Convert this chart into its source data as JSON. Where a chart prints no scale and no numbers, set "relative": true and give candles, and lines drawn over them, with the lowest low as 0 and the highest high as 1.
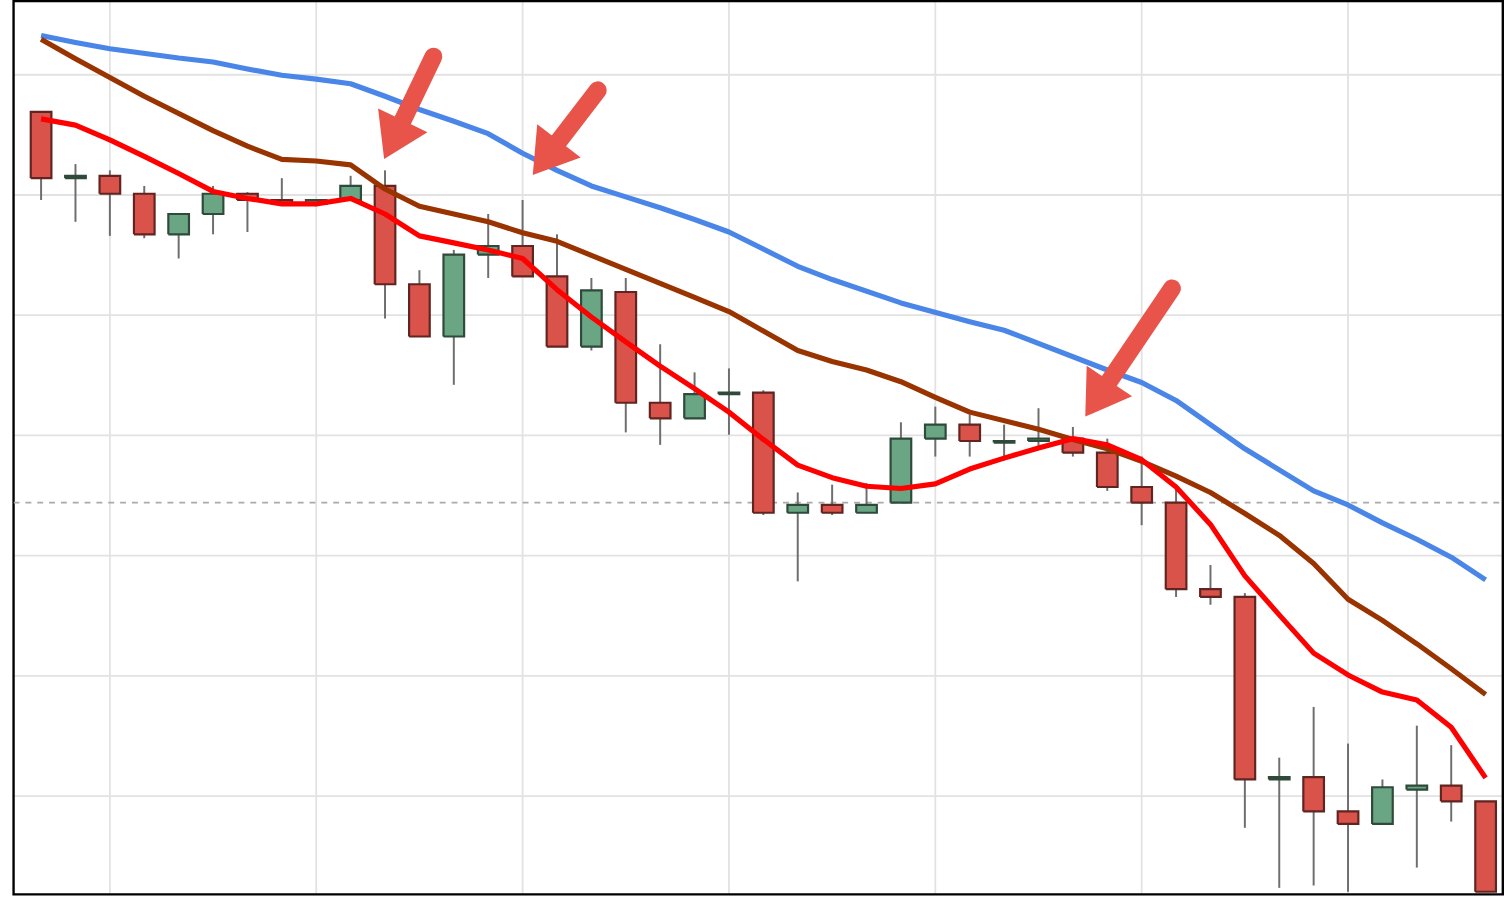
{
  "chart_data": {
    "type": "candlestick",
    "relative": true,
    "grid": true,
    "categories": [
      null,
      null,
      null,
      null,
      null,
      null,
      null,
      null,
      null,
      null,
      null,
      null,
      null,
      null,
      null,
      null,
      null,
      null,
      null,
      null,
      null,
      null,
      null,
      null,
      null,
      null,
      null,
      null,
      null,
      null,
      null,
      null,
      null,
      null,
      null,
      null,
      null,
      null,
      null,
      null,
      null,
      null,
      null
    ],
    "ohlc": [
      [
        1.0,
        1.0,
        0.887,
        0.915
      ],
      [
        0.915,
        0.933,
        0.859,
        0.918
      ],
      [
        0.918,
        0.925,
        0.841,
        0.895
      ],
      [
        0.895,
        0.905,
        0.838,
        0.843
      ],
      [
        0.843,
        0.869,
        0.812,
        0.869
      ],
      [
        0.869,
        0.905,
        0.843,
        0.895
      ],
      [
        0.895,
        0.897,
        0.846,
        0.887
      ],
      [
        0.887,
        0.915,
        0.882,
        0.882
      ],
      [
        0.882,
        0.887,
        0.879,
        0.887
      ],
      [
        0.887,
        0.918,
        0.887,
        0.905
      ],
      [
        0.905,
        0.925,
        0.735,
        0.779
      ],
      [
        0.779,
        0.797,
        0.712,
        0.712
      ],
      [
        0.712,
        0.823,
        0.65,
        0.817
      ],
      [
        0.817,
        0.869,
        0.787,
        0.828
      ],
      [
        0.828,
        0.887,
        0.789,
        0.789
      ],
      [
        0.789,
        0.843,
        0.699,
        0.699
      ],
      [
        0.699,
        0.787,
        0.694,
        0.771
      ],
      [
        0.769,
        0.787,
        0.589,
        0.627
      ],
      [
        0.627,
        0.702,
        0.573,
        0.607
      ],
      [
        0.607,
        0.666,
        0.607,
        0.638
      ],
      [
        0.638,
        0.671,
        0.586,
        0.64
      ],
      [
        0.64,
        0.643,
        0.483,
        0.486
      ],
      [
        0.486,
        0.512,
        0.398,
        0.496
      ],
      [
        0.496,
        0.522,
        0.483,
        0.486
      ],
      [
        0.486,
        0.524,
        0.486,
        0.496
      ],
      [
        0.499,
        0.602,
        0.499,
        0.581
      ],
      [
        0.581,
        0.622,
        0.558,
        0.599
      ],
      [
        0.599,
        0.612,
        0.558,
        0.578
      ],
      [
        0.576,
        0.599,
        0.553,
        0.578
      ],
      [
        0.578,
        0.62,
        0.568,
        0.581
      ],
      [
        0.581,
        0.596,
        0.558,
        0.563
      ],
      [
        0.563,
        0.581,
        0.514,
        0.519
      ],
      [
        0.519,
        0.558,
        0.47,
        0.499
      ],
      [
        0.499,
        0.522,
        0.378,
        0.388
      ],
      [
        0.388,
        0.419,
        0.368,
        0.378
      ],
      [
        0.378,
        0.383,
        0.082,
        0.144
      ],
      [
        0.144,
        0.172,
        0.005,
        0.147
      ],
      [
        0.147,
        0.237,
        0.008,
        0.103
      ],
      [
        0.103,
        0.19,
        0.0,
        0.087
      ],
      [
        0.087,
        0.144,
        0.087,
        0.134
      ],
      [
        0.131,
        0.213,
        0.031,
        0.136
      ],
      [
        0.136,
        0.188,
        0.09,
        0.116
      ],
      [
        0.116,
        0.116,
        0.0,
        0.0
      ]
    ],
    "colors": [
      "#d9534a",
      "#6aa584",
      "#d9534a",
      "#d9534a",
      "#6aa584",
      "#6aa584",
      "#d9534a",
      "#d9534a",
      "#6aa584",
      "#6aa584",
      "#d9534a",
      "#d9534a",
      "#6aa584",
      "#6aa584",
      "#d9534a",
      "#d9534a",
      "#6aa584",
      "#d9534a",
      "#d9534a",
      "#6aa584",
      "#6aa584",
      "#d9534a",
      "#6aa584",
      "#d9534a",
      "#6aa584",
      "#6aa584",
      "#6aa584",
      "#d9534a",
      "#6aa584",
      "#6aa584",
      "#d9534a",
      "#d9534a",
      "#d9534a",
      "#d9534a",
      "#d9534a",
      "#d9534a",
      "#6aa584",
      "#d9534a",
      "#d9534a",
      "#6aa584",
      "#6aa584",
      "#d9534a",
      "#d9534a"
    ],
    "series": [
      {
        "type": "line",
        "color": "#4a86e8",
        "values": [
          1.098,
          1.089,
          1.081,
          1.075,
          1.069,
          1.064,
          1.055,
          1.047,
          1.042,
          1.036,
          1.02,
          1.003,
          0.988,
          0.972,
          0.947,
          0.925,
          0.905,
          0.891,
          0.877,
          0.862,
          0.846,
          0.824,
          0.802,
          0.785,
          0.77,
          0.755,
          0.743,
          0.731,
          0.72,
          0.703,
          0.686,
          0.669,
          0.653,
          0.63,
          0.599,
          0.568,
          0.541,
          0.514,
          0.496,
          0.473,
          0.452,
          0.429,
          0.4
        ]
      },
      {
        "type": "line",
        "color": "#993300",
        "values": [
          1.093,
          1.068,
          1.044,
          1.02,
          0.998,
          0.976,
          0.956,
          0.939,
          0.937,
          0.932,
          0.901,
          0.879,
          0.869,
          0.859,
          0.845,
          0.834,
          0.816,
          0.798,
          0.78,
          0.762,
          0.744,
          0.719,
          0.694,
          0.68,
          0.669,
          0.654,
          0.634,
          0.615,
          0.604,
          0.593,
          0.58,
          0.568,
          0.552,
          0.533,
          0.512,
          0.485,
          0.457,
          0.421,
          0.375,
          0.348,
          0.318,
          0.286,
          0.253
        ]
      },
      {
        "type": "line",
        "color": "#ff0000",
        "values": [
          0.991,
          0.983,
          0.964,
          0.943,
          0.921,
          0.898,
          0.889,
          0.882,
          0.882,
          0.889,
          0.869,
          0.841,
          0.832,
          0.823,
          0.812,
          0.772,
          0.737,
          0.705,
          0.674,
          0.645,
          0.615,
          0.58,
          0.547,
          0.531,
          0.52,
          0.517,
          0.523,
          0.542,
          0.556,
          0.569,
          0.581,
          0.573,
          0.554,
          0.519,
          0.471,
          0.405,
          0.355,
          0.306,
          0.278,
          0.256,
          0.246,
          0.211,
          0.146
        ]
      }
    ],
    "ref_lines": [
      {
        "axis": "y",
        "value": 0.499,
        "color": "#aaaaaa",
        "line_style": "dashed"
      }
    ]
  }
}
